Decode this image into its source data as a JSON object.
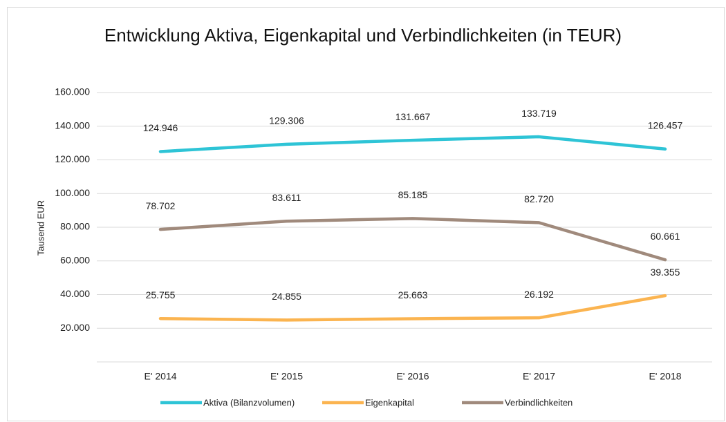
{
  "chart_data": {
    "type": "line",
    "title": "Entwicklung Aktiva, Eigenkapital und Verbindlichkeiten (in TEUR)",
    "y_label": "Tausend EUR",
    "categories": [
      "E' 2014",
      "E' 2015",
      "E' 2016",
      "E' 2017",
      "E' 2018"
    ],
    "series": [
      {
        "name": "Aktiva (Bilanzvolumen)",
        "color": "#2ec4d6",
        "values": [
          124946,
          129306,
          131667,
          133719,
          126457
        ],
        "value_labels": [
          "124.946",
          "129.306",
          "131.667",
          "133.719",
          "126.457"
        ]
      },
      {
        "name": "Eigenkapital",
        "color": "#fbb450",
        "values": [
          25755,
          24855,
          25663,
          26192,
          39355
        ],
        "value_labels": [
          "25.755",
          "24.855",
          "25.663",
          "26.192",
          "39.355"
        ]
      },
      {
        "name": "Verbindlichkeiten",
        "color": "#a08a7c",
        "values": [
          78702,
          83611,
          85185,
          82720,
          60661
        ],
        "value_labels": [
          "78.702",
          "83.611",
          "85.185",
          "82.720",
          "60.661"
        ]
      }
    ],
    "ylim": [
      0,
      160000
    ],
    "yticks": [
      {
        "value": 20000,
        "label": "20.000"
      },
      {
        "value": 40000,
        "label": "40.000"
      },
      {
        "value": 60000,
        "label": "60.000"
      },
      {
        "value": 80000,
        "label": "80.000"
      },
      {
        "value": 100000,
        "label": "100.000"
      },
      {
        "value": 120000,
        "label": "120.000"
      },
      {
        "value": 140000,
        "label": "140.000"
      },
      {
        "value": 160000,
        "label": "160.000"
      }
    ],
    "grid": true,
    "legend": "bottom"
  }
}
